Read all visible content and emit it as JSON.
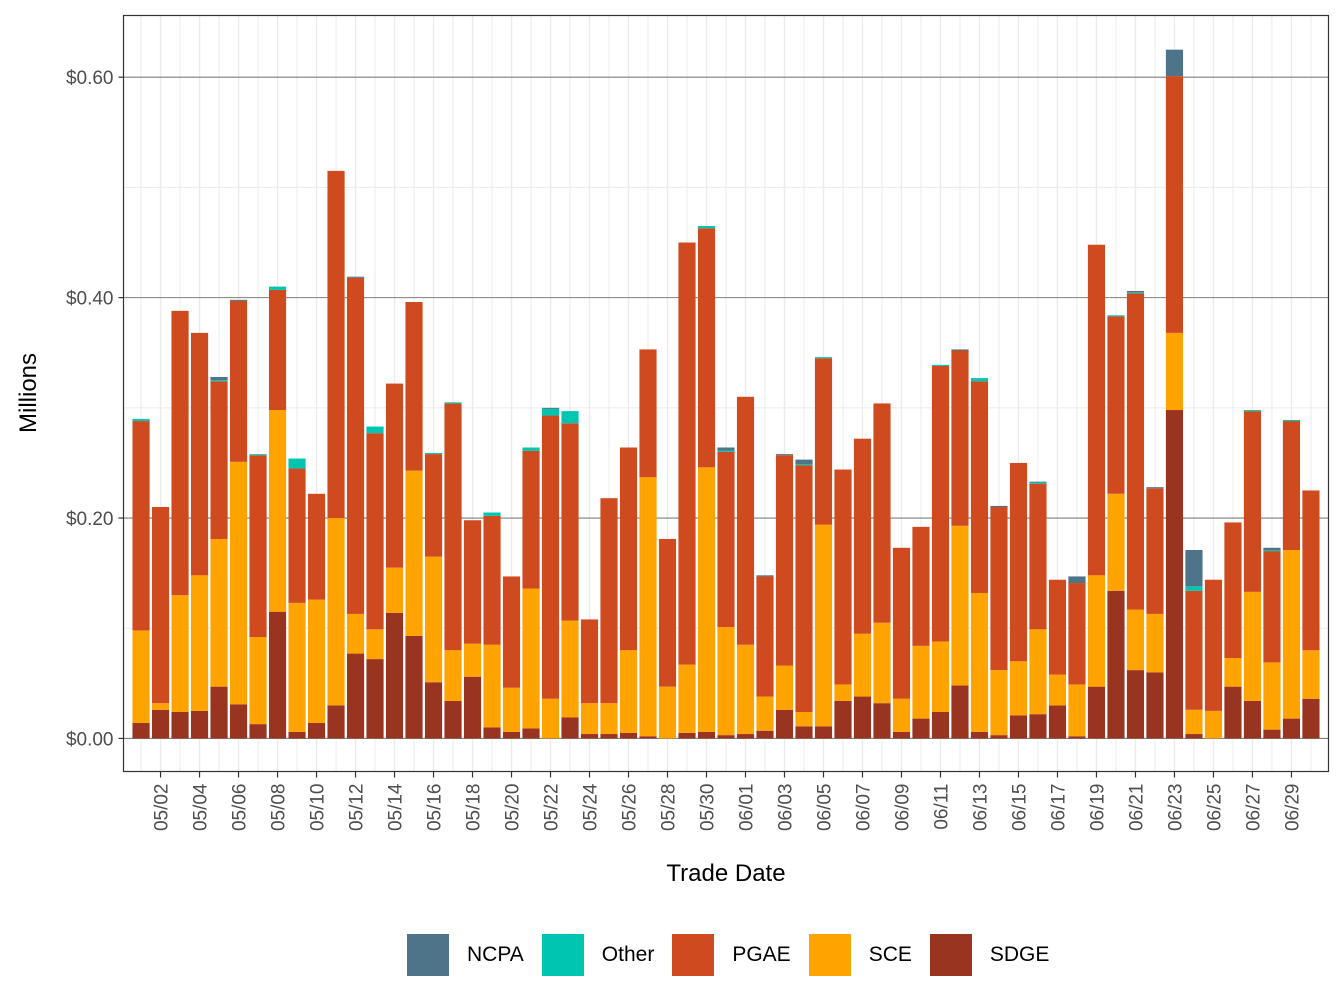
{
  "chart_data": {
    "type": "bar",
    "stacked": true,
    "title": "",
    "xlabel": "Trade Date",
    "ylabel": "Millions",
    "ylim": [
      -0.03,
      0.656
    ],
    "yticks": [
      0.0,
      0.2,
      0.4,
      0.6
    ],
    "ytick_labels": [
      "$0.00",
      "$0.20",
      "$0.40",
      "$0.60"
    ],
    "grid": true,
    "legend_position": "bottom",
    "categories": [
      "05/01",
      "05/02",
      "05/03",
      "05/04",
      "05/05",
      "05/06",
      "05/07",
      "05/08",
      "05/09",
      "05/10",
      "05/11",
      "05/12",
      "05/13",
      "05/14",
      "05/15",
      "05/16",
      "05/17",
      "05/18",
      "05/19",
      "05/20",
      "05/21",
      "05/22",
      "05/23",
      "05/24",
      "05/25",
      "05/26",
      "05/27",
      "05/28",
      "05/29",
      "05/30",
      "05/31",
      "06/01",
      "06/02",
      "06/03",
      "06/04",
      "06/05",
      "06/06",
      "06/07",
      "06/08",
      "06/09",
      "06/10",
      "06/11",
      "06/12",
      "06/13",
      "06/14",
      "06/15",
      "06/16",
      "06/17",
      "06/18",
      "06/19",
      "06/20",
      "06/21",
      "06/22",
      "06/23",
      "06/24",
      "06/25",
      "06/26",
      "06/27",
      "06/28",
      "06/29",
      "06/30"
    ],
    "xtick_labels": [
      "05/02",
      "05/04",
      "05/06",
      "05/08",
      "05/10",
      "05/12",
      "05/14",
      "05/16",
      "05/18",
      "05/20",
      "05/22",
      "05/24",
      "05/26",
      "05/28",
      "05/30",
      "06/01",
      "06/03",
      "06/05",
      "06/07",
      "06/09",
      "06/11",
      "06/13",
      "06/15",
      "06/17",
      "06/19",
      "06/21",
      "06/23",
      "06/25",
      "06/27",
      "06/29"
    ],
    "stack_order": [
      "SDGE",
      "SCE",
      "PGAE",
      "Other",
      "NCPA"
    ],
    "series": [
      {
        "name": "SDGE",
        "color": "#993421",
        "values": [
          0.014,
          0.026,
          0.024,
          0.025,
          0.047,
          0.031,
          0.013,
          0.115,
          0.006,
          0.014,
          0.03,
          0.077,
          0.072,
          0.114,
          0.093,
          0.051,
          0.034,
          0.056,
          0.01,
          0.006,
          0.009,
          0.0,
          0.019,
          0.004,
          0.004,
          0.005,
          0.002,
          0.0,
          0.005,
          0.006,
          0.003,
          0.004,
          0.007,
          0.026,
          0.011,
          0.011,
          0.034,
          0.038,
          0.032,
          0.006,
          0.018,
          0.024,
          0.048,
          0.006,
          0.003,
          0.021,
          0.022,
          0.03,
          0.002,
          0.047,
          0.134,
          0.062,
          0.06,
          0.298,
          0.004,
          0.0,
          0.047,
          0.034,
          0.008,
          0.018,
          0.036
        ]
      },
      {
        "name": "SCE",
        "color": "#FFA300",
        "values": [
          0.084,
          0.006,
          0.106,
          0.123,
          0.134,
          0.22,
          0.079,
          0.183,
          0.117,
          0.112,
          0.17,
          0.036,
          0.027,
          0.041,
          0.15,
          0.114,
          0.046,
          0.03,
          0.075,
          0.04,
          0.127,
          0.036,
          0.088,
          0.028,
          0.028,
          0.075,
          0.235,
          0.047,
          0.062,
          0.24,
          0.098,
          0.081,
          0.031,
          0.04,
          0.013,
          0.183,
          0.015,
          0.057,
          0.073,
          0.03,
          0.066,
          0.064,
          0.145,
          0.126,
          0.059,
          0.049,
          0.077,
          0.028,
          0.047,
          0.101,
          0.088,
          0.055,
          0.053,
          0.07,
          0.022,
          0.025,
          0.026,
          0.099,
          0.061,
          0.153,
          0.044
        ]
      },
      {
        "name": "PGAE",
        "color": "#D04A20",
        "values": [
          0.19,
          0.178,
          0.258,
          0.22,
          0.143,
          0.146,
          0.165,
          0.109,
          0.122,
          0.096,
          0.315,
          0.305,
          0.178,
          0.167,
          0.153,
          0.093,
          0.224,
          0.112,
          0.117,
          0.101,
          0.125,
          0.257,
          0.179,
          0.076,
          0.186,
          0.184,
          0.116,
          0.134,
          0.383,
          0.217,
          0.159,
          0.225,
          0.109,
          0.191,
          0.224,
          0.151,
          0.195,
          0.177,
          0.199,
          0.137,
          0.108,
          0.25,
          0.159,
          0.192,
          0.148,
          0.18,
          0.132,
          0.086,
          0.092,
          0.3,
          0.161,
          0.287,
          0.114,
          0.233,
          0.108,
          0.119,
          0.123,
          0.164,
          0.101,
          0.117,
          0.145
        ]
      },
      {
        "name": "Other",
        "color": "#00C5B0",
        "values": [
          0.002,
          0.0,
          0.0,
          0.0,
          0.001,
          0.0,
          0.001,
          0.003,
          0.009,
          0.0,
          0.0,
          0.0,
          0.006,
          0.0,
          0.0,
          0.001,
          0.001,
          0.0,
          0.003,
          0.0,
          0.003,
          0.006,
          0.011,
          0.0,
          0.0,
          0.0,
          0.0,
          0.0,
          0.0,
          0.002,
          0.001,
          0.0,
          0.0,
          0.0,
          0.001,
          0.001,
          0.0,
          0.0,
          0.0,
          0.0,
          0.0,
          0.001,
          0.0,
          0.003,
          0.0,
          0.0,
          0.001,
          0.0,
          0.0,
          0.0,
          0.001,
          0.001,
          0.0,
          0.0,
          0.004,
          0.0,
          0.0,
          0.001,
          0.001,
          0.001,
          0.0
        ]
      },
      {
        "name": "NCPA",
        "color": "#4E7489",
        "values": [
          0.0,
          0.0,
          0.0,
          0.0,
          0.003,
          0.001,
          0.0,
          0.0,
          0.0,
          0.0,
          0.0,
          0.001,
          0.0,
          0.0,
          0.0,
          0.0,
          0.0,
          0.0,
          0.0,
          0.0,
          0.0,
          0.001,
          0.0,
          0.0,
          0.0,
          0.0,
          0.0,
          0.0,
          0.0,
          0.0,
          0.003,
          0.0,
          0.001,
          0.001,
          0.004,
          0.0,
          0.0,
          0.0,
          0.0,
          0.0,
          0.0,
          0.0,
          0.001,
          0.0,
          0.001,
          0.0,
          0.001,
          0.0,
          0.006,
          0.0,
          0.0,
          0.001,
          0.001,
          0.024,
          0.033,
          0.0,
          0.0,
          0.0,
          0.002,
          0.0,
          0.0
        ]
      }
    ]
  },
  "legend": {
    "items": [
      {
        "label": "NCPA",
        "color": "#4E7489"
      },
      {
        "label": "Other",
        "color": "#00C5B0"
      },
      {
        "label": "PGAE",
        "color": "#D04A20"
      },
      {
        "label": "SCE",
        "color": "#FFA300"
      },
      {
        "label": "SDGE",
        "color": "#993421"
      }
    ]
  }
}
